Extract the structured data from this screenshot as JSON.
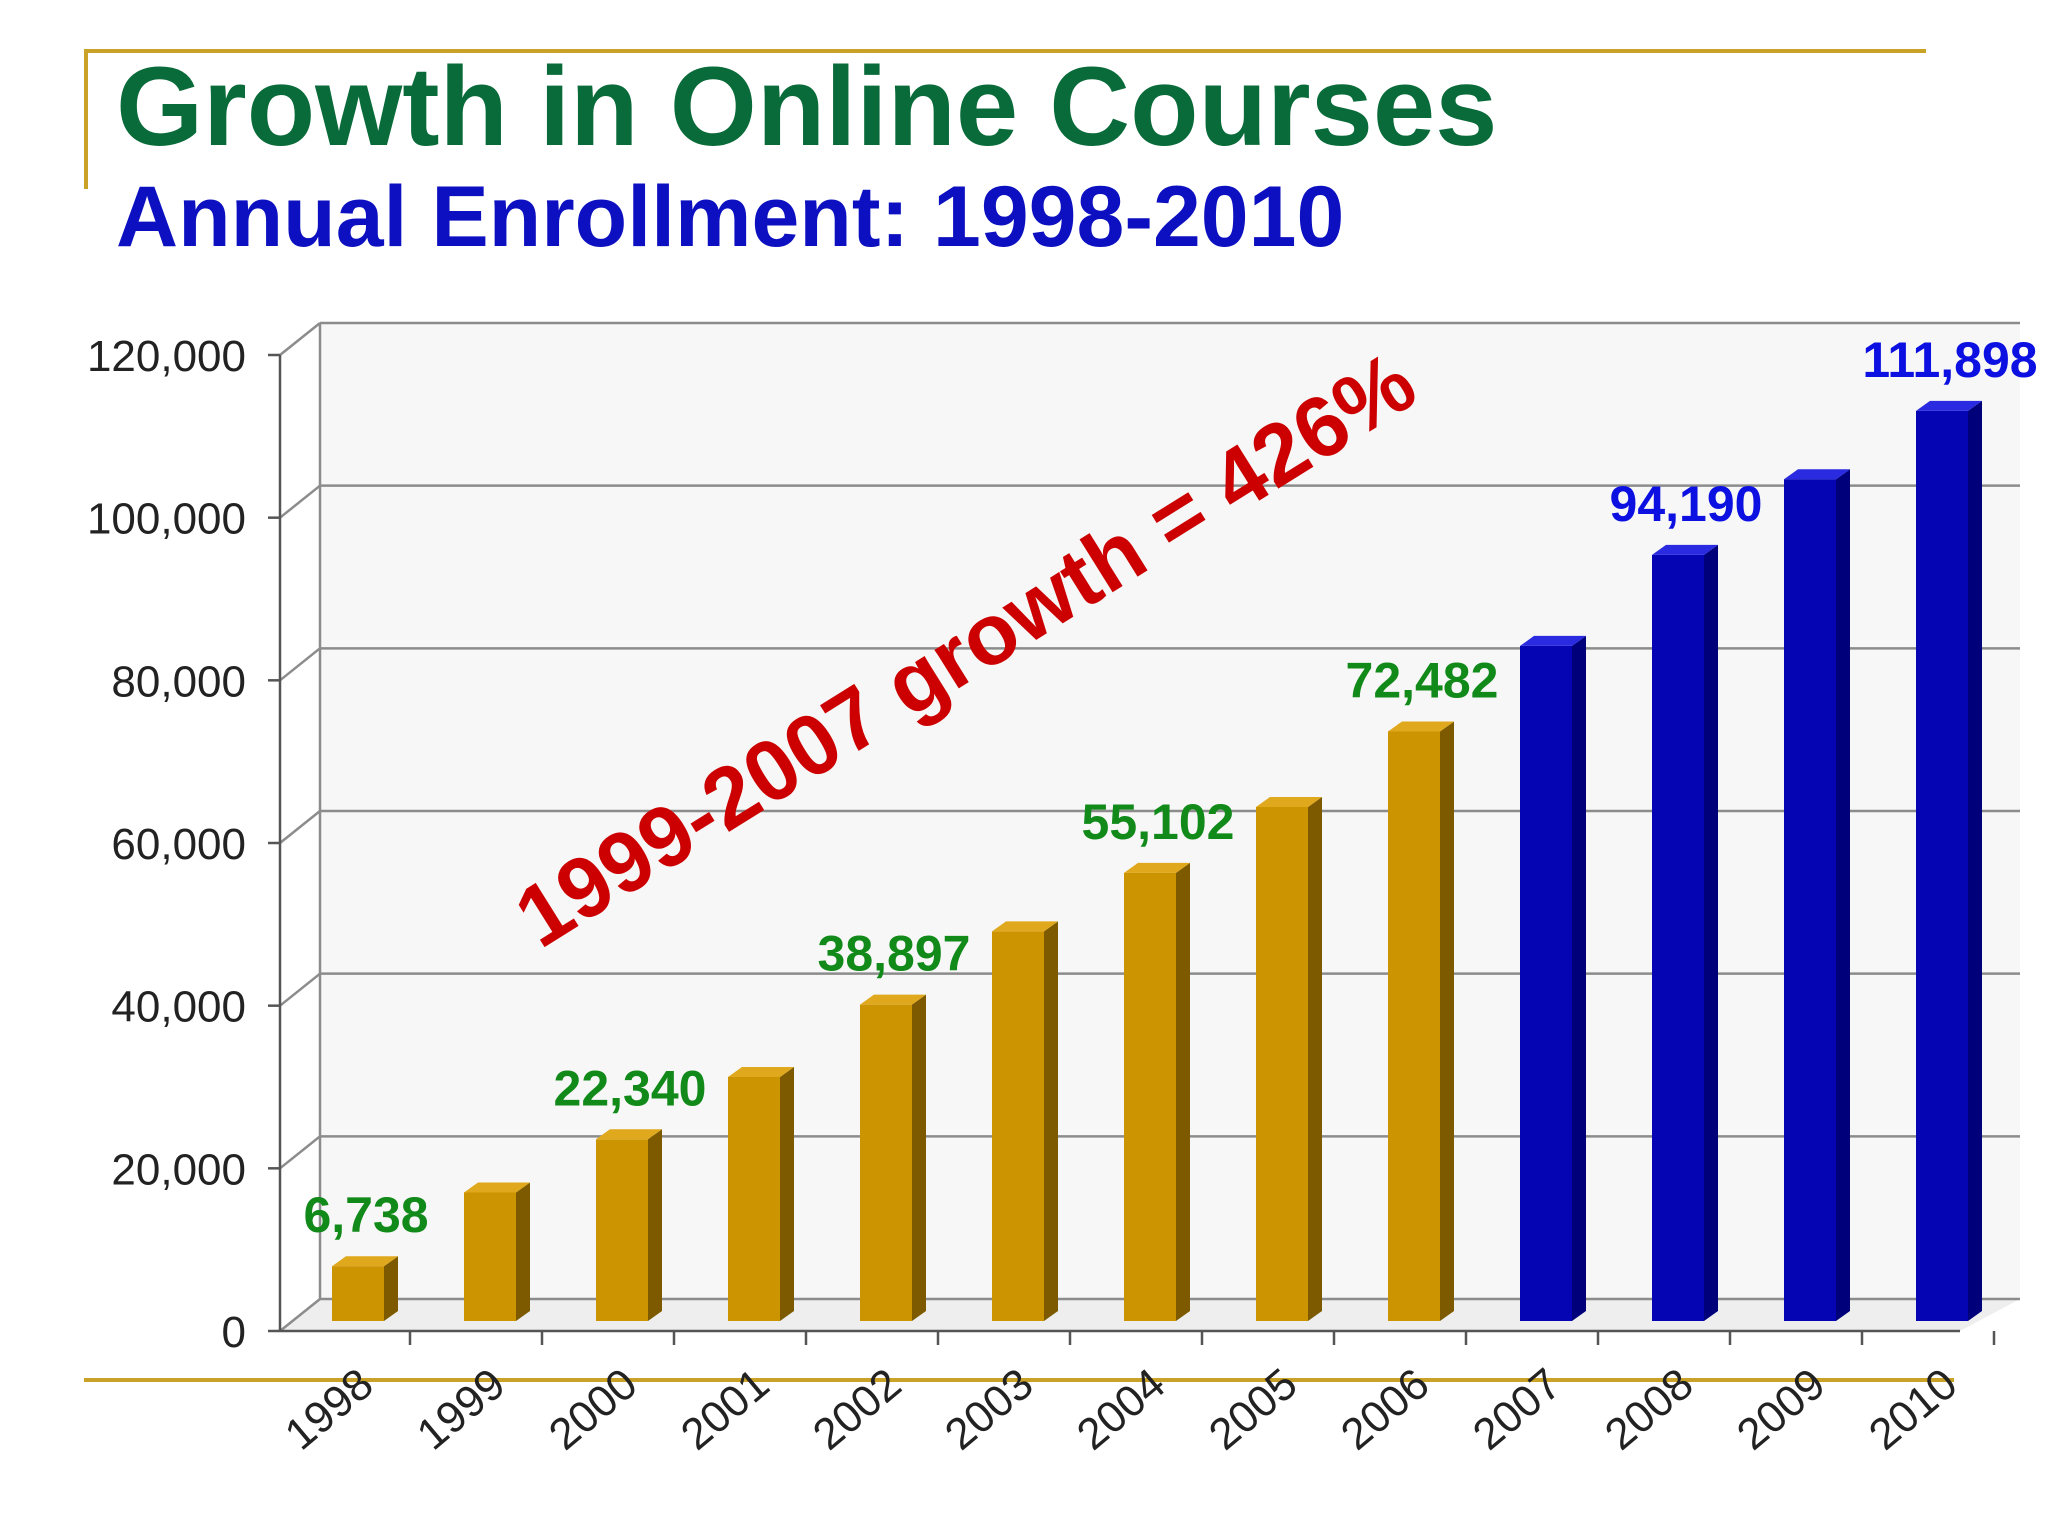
{
  "header": {
    "title": "Growth in Online Courses",
    "subtitle": "Annual Enrollment: 1998-2010"
  },
  "annotation": {
    "text": "1999-2007 growth =  426%",
    "color": "#cc0000"
  },
  "colors": {
    "gold_bar": "#cc9400",
    "gold_side": "#7d5a00",
    "gold_top": "#e0a81c",
    "blue_bar": "#0505b4",
    "blue_side": "#00007a",
    "blue_top": "#2a2ae0",
    "green_label": "#118a1a",
    "blue_label": "#0c10e0",
    "rule": "#c9a227"
  },
  "chart_data": {
    "type": "bar",
    "title": "Growth in Online Courses",
    "subtitle": "Annual Enrollment: 1998-2010",
    "xlabel": "",
    "ylabel": "",
    "ylim": [
      0,
      120000
    ],
    "yticks": [
      "0",
      "20,000",
      "40,000",
      "60,000",
      "80,000",
      "100,000",
      "120,000"
    ],
    "ytick_values": [
      0,
      20000,
      40000,
      60000,
      80000,
      100000,
      120000
    ],
    "grid": true,
    "categories": [
      "1998",
      "1999",
      "2000",
      "2001",
      "2002",
      "2003",
      "2004",
      "2005",
      "2006",
      "2007",
      "2008",
      "2009",
      "2010"
    ],
    "values": [
      6738,
      15800,
      22340,
      30000,
      38897,
      47900,
      55102,
      63200,
      72482,
      83000,
      94190,
      103500,
      111898
    ],
    "data_labels": [
      "6,738",
      "",
      "22,340",
      "",
      "38,897",
      "",
      "55,102",
      "",
      "72,482",
      "",
      "94,190",
      "",
      "111,898"
    ],
    "bar_groups": [
      "gold",
      "gold",
      "gold",
      "gold",
      "gold",
      "gold",
      "gold",
      "gold",
      "gold",
      "blue",
      "blue",
      "blue",
      "blue"
    ]
  }
}
